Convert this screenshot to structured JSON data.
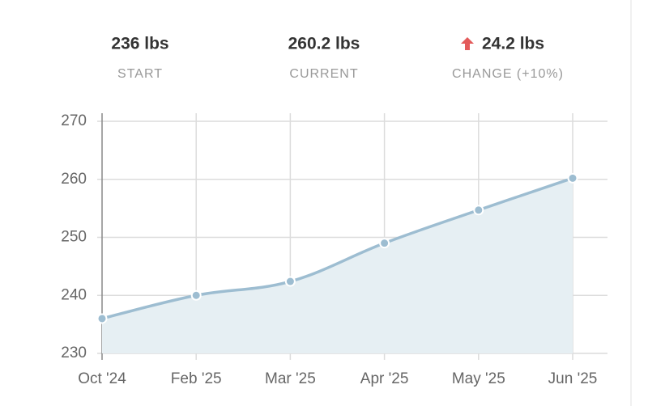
{
  "stats": [
    {
      "value": "236 lbs",
      "label": "START"
    },
    {
      "value": "260.2 lbs",
      "label": "CURRENT"
    },
    {
      "value": "24.2 lbs",
      "label": "CHANGE (+10%)"
    }
  ],
  "chart_data": {
    "type": "area",
    "categories": [
      "Oct '24",
      "Feb '25",
      "Mar '25",
      "Apr '25",
      "May '25",
      "Jun '25"
    ],
    "series": [
      {
        "color": "#9dbdd1",
        "fill": "#e6eff3",
        "values": [
          236,
          240,
          242.4,
          249,
          254.7,
          260.2
        ]
      }
    ],
    "ylim": [
      230,
      270
    ],
    "yticks": [
      230,
      240,
      250,
      260,
      270
    ],
    "grid": true
  }
}
